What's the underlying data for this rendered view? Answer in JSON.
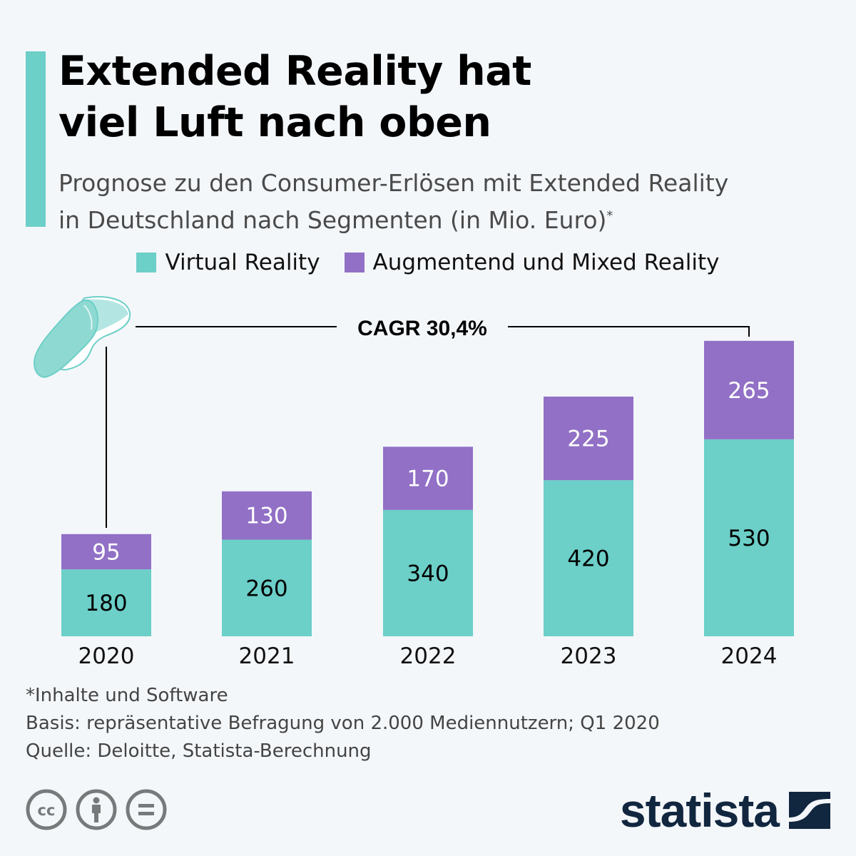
{
  "header": {
    "title": "Extended Reality hat\nviel Luft nach oben",
    "subtitle": "Prognose zu den Consumer-Erlösen mit Extended Reality\nin Deutschland nach Segmenten (in Mio. Euro)",
    "subtitle_marker": "*"
  },
  "colors": {
    "accent": "#6ccfc8",
    "virtual_reality": "#6ccfc8",
    "augmented_mixed_reality": "#9170c6",
    "brand": "#11263f",
    "icon_gray": "#767a7a"
  },
  "chart_data": {
    "type": "bar",
    "stacked": true,
    "title": "Extended Reality hat viel Luft nach oben",
    "subtitle": "Prognose zu den Consumer-Erlösen mit Extended Reality in Deutschland nach Segmenten (in Mio. Euro)*",
    "xlabel": "",
    "ylabel": "Mio. Euro",
    "categories": [
      "2020",
      "2021",
      "2022",
      "2023",
      "2024"
    ],
    "series": [
      {
        "name": "Virtual Reality",
        "color": "#6ccfc8",
        "values": [
          180,
          260,
          340,
          420,
          530
        ]
      },
      {
        "name": "Augmentend und Mixed Reality",
        "color": "#9170c6",
        "values": [
          95,
          130,
          170,
          225,
          265
        ]
      }
    ],
    "ylim": [
      0,
      800
    ],
    "grid": false,
    "legend": "top-center",
    "annotations": [
      {
        "text": "CAGR 30,4%",
        "from": "2020",
        "to": "2024"
      }
    ]
  },
  "legend": {
    "items": [
      {
        "label": "Virtual Reality"
      },
      {
        "label": "Augmentend und Mixed Reality"
      }
    ]
  },
  "footer": {
    "note": "*Inhalte und Software",
    "basis": "Basis: repräsentative Befragung von 2.000 Mediennutzern; Q1 2020",
    "source": "Quelle: Deloitte, Statista-Berechnung",
    "brand": "statista",
    "icons": [
      "cc-icon",
      "attribution-icon",
      "no-derivatives-icon"
    ]
  }
}
